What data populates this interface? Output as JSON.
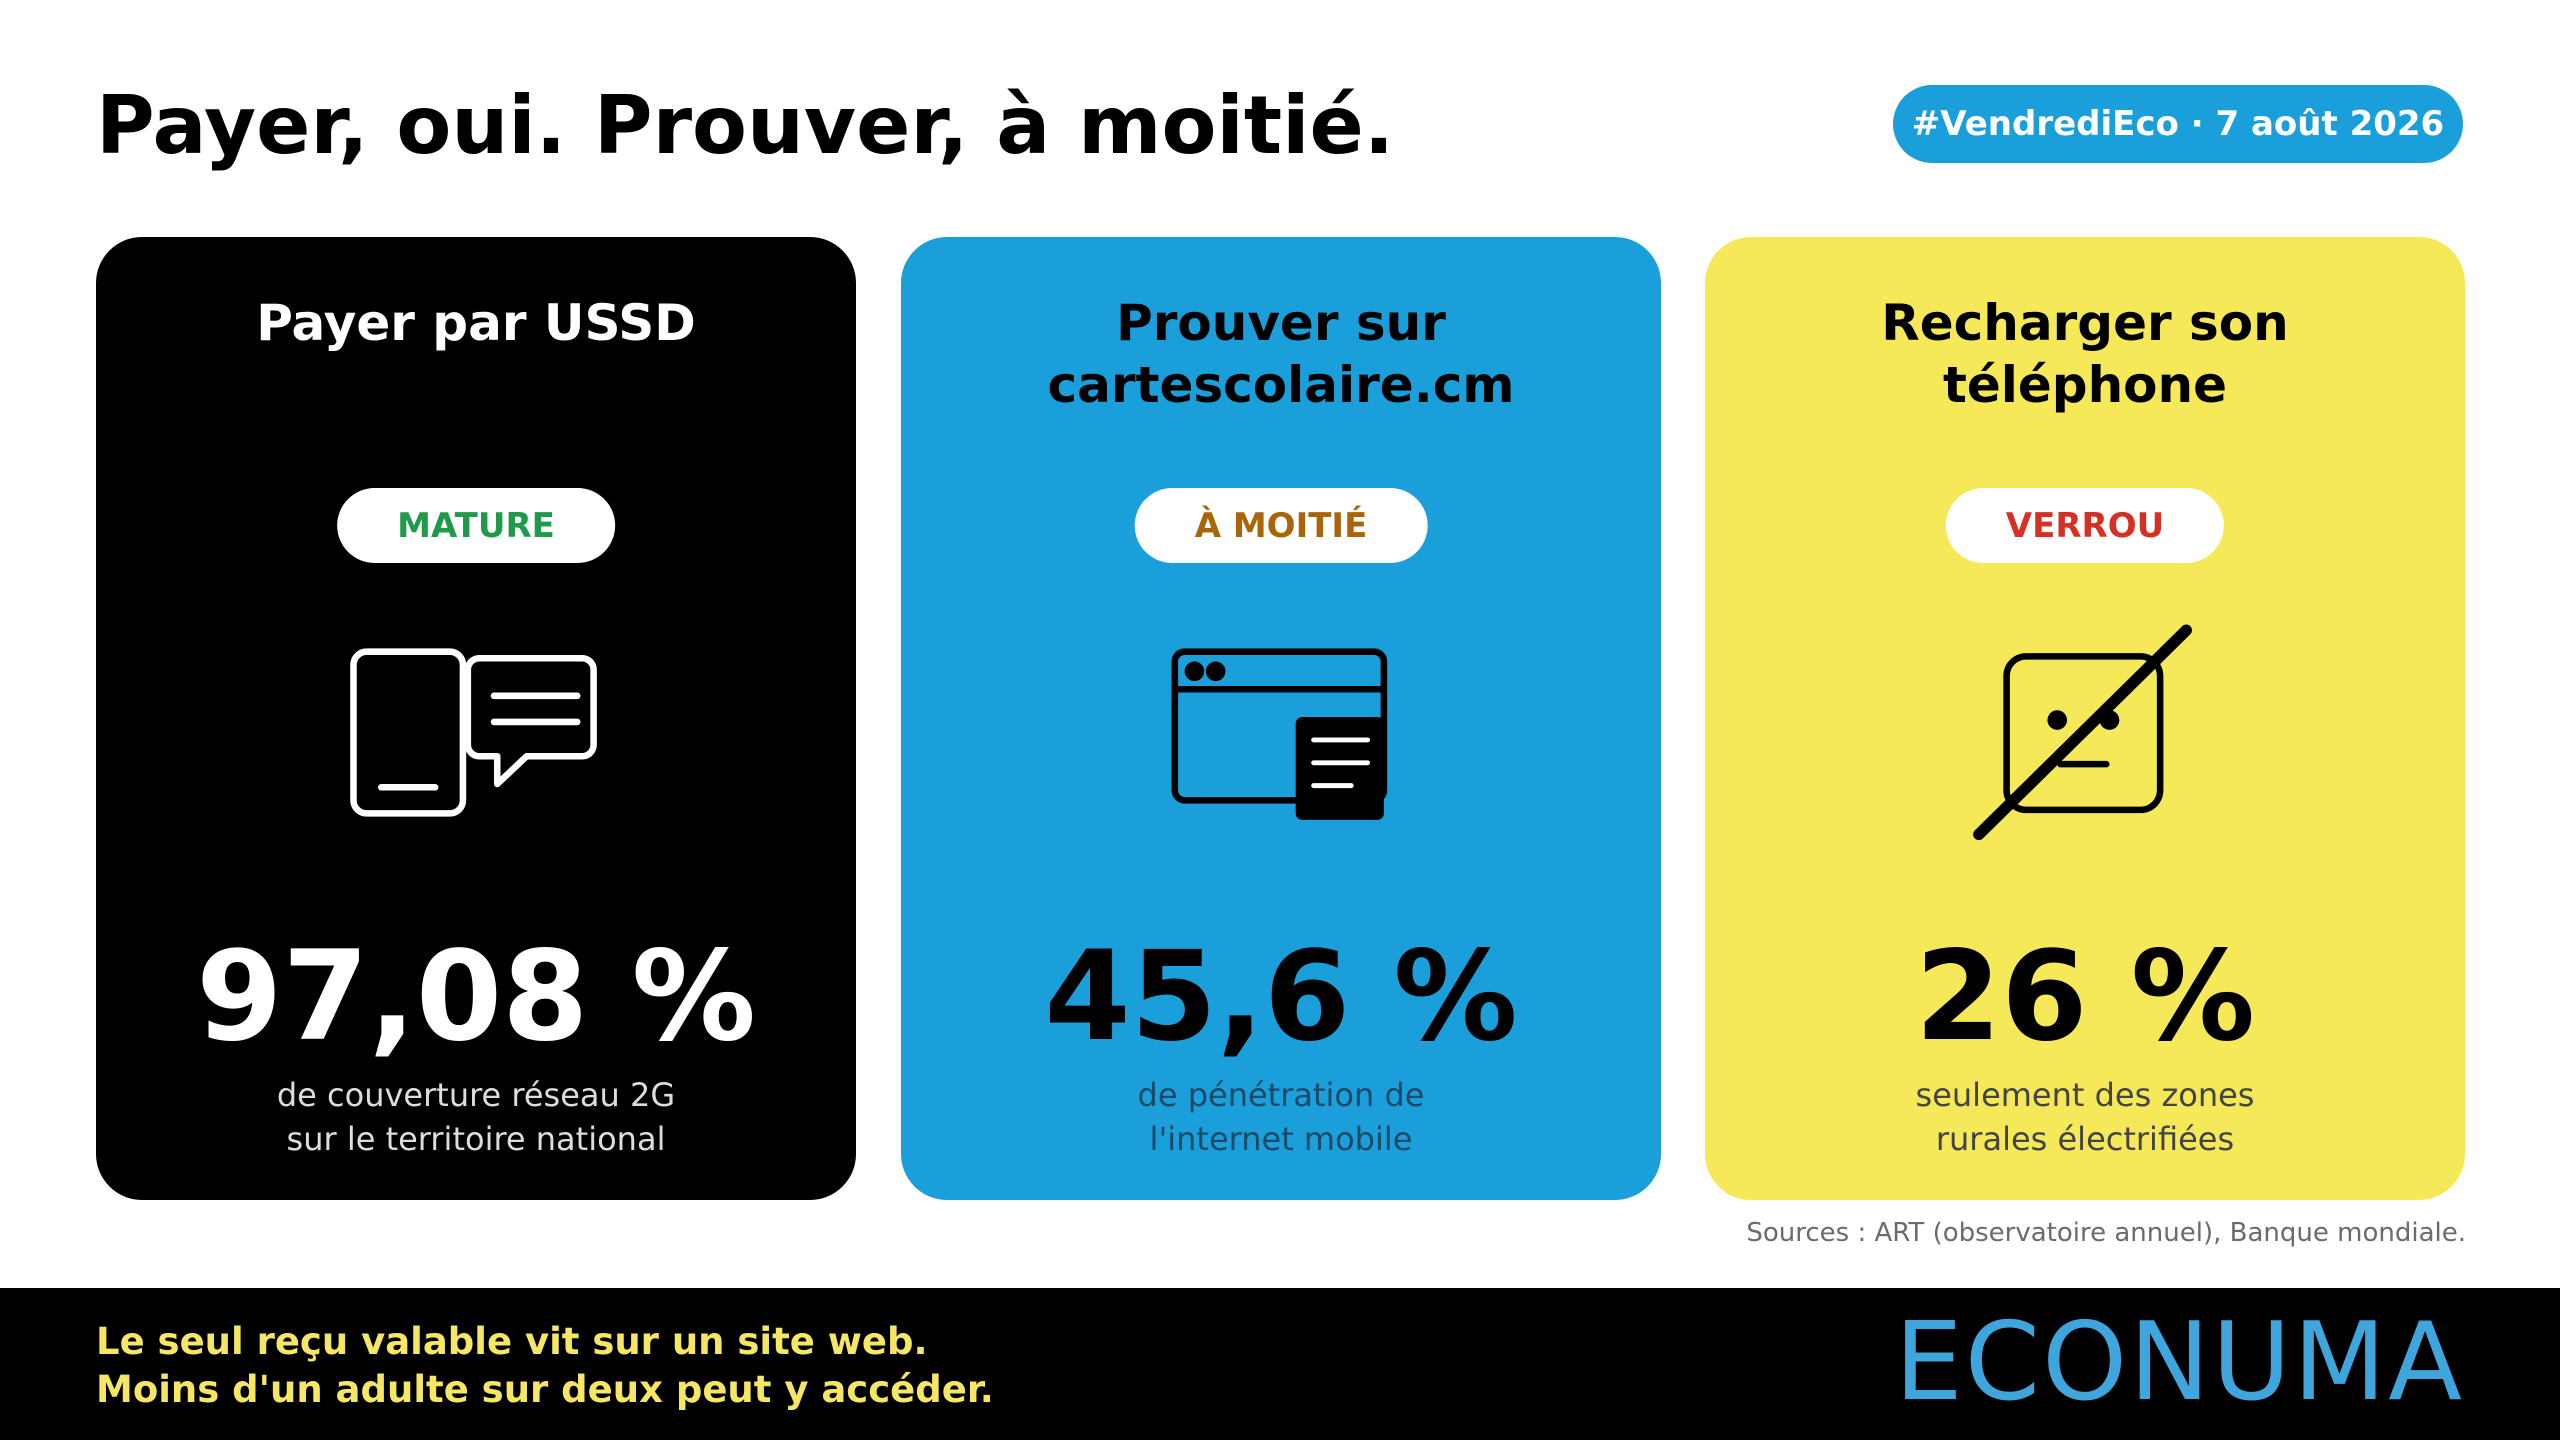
{
  "header": {
    "title": "Payer, oui. Prouver, à moitié.",
    "badge": "#VendrediEco · 7 août 2026"
  },
  "cards": [
    {
      "title": [
        "Payer par USSD"
      ],
      "status": "MATURE",
      "stat": "97,08 %",
      "description": [
        "de couverture réseau 2G",
        "sur le territoire national"
      ]
    },
    {
      "title": [
        "Prouver sur",
        "cartescolaire.cm"
      ],
      "status": "À MOITIÉ",
      "stat": "45,6 %",
      "description": [
        "de pénétration de",
        "l'internet mobile"
      ]
    },
    {
      "title": [
        "Recharger son",
        "téléphone"
      ],
      "status": "VERROU",
      "stat": "26 %",
      "description": [
        "seulement des zones",
        "rurales électrifiées"
      ]
    }
  ],
  "sources": "Sources : ART (observatoire annuel), Banque mondiale.",
  "footer": {
    "lines": [
      "Le seul reçu valable vit sur un site web.",
      "Moins d'un adulte sur deux peut y accéder."
    ],
    "logo": "ECONUMA"
  }
}
